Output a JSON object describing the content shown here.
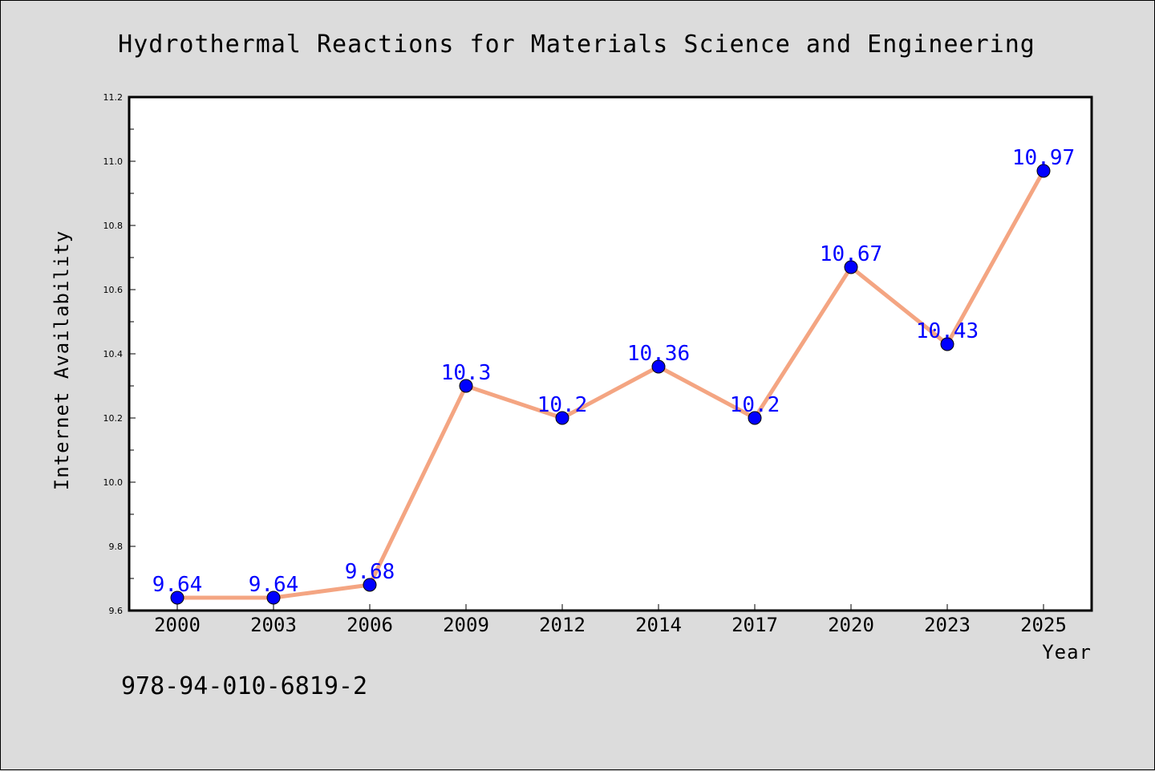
{
  "chart_data": {
    "type": "line",
    "title": "Hydrothermal Reactions for Materials Science and Engineering",
    "xlabel": "Year",
    "ylabel": "Internet Availability",
    "categories": [
      "2000",
      "2003",
      "2006",
      "2009",
      "2012",
      "2014",
      "2017",
      "2020",
      "2023",
      "2025"
    ],
    "series": [
      {
        "values": [
          9.64,
          9.64,
          9.68,
          10.3,
          10.2,
          10.36,
          10.2,
          10.67,
          10.43,
          10.97
        ],
        "labels": [
          "9.64",
          "9.64",
          "9.68",
          "10.3",
          "10.2",
          "10.36",
          "10.2",
          "10.67",
          "10.43",
          "10.97"
        ],
        "line_color": "#f4a582",
        "marker_color": "#0000ff",
        "label_color": "#0000ff"
      }
    ],
    "ylim": [
      9.6,
      11.2
    ],
    "yticks": [
      "9.6",
      "9.8",
      "10.0",
      "10.2",
      "10.4",
      "10.6",
      "10.8",
      "11.0",
      "11.2"
    ],
    "grid": false,
    "legend": "none"
  },
  "footer_text": "978-94-010-6819-2",
  "colors": {
    "background": "#dcdcdc",
    "plot_background": "#ffffff"
  }
}
